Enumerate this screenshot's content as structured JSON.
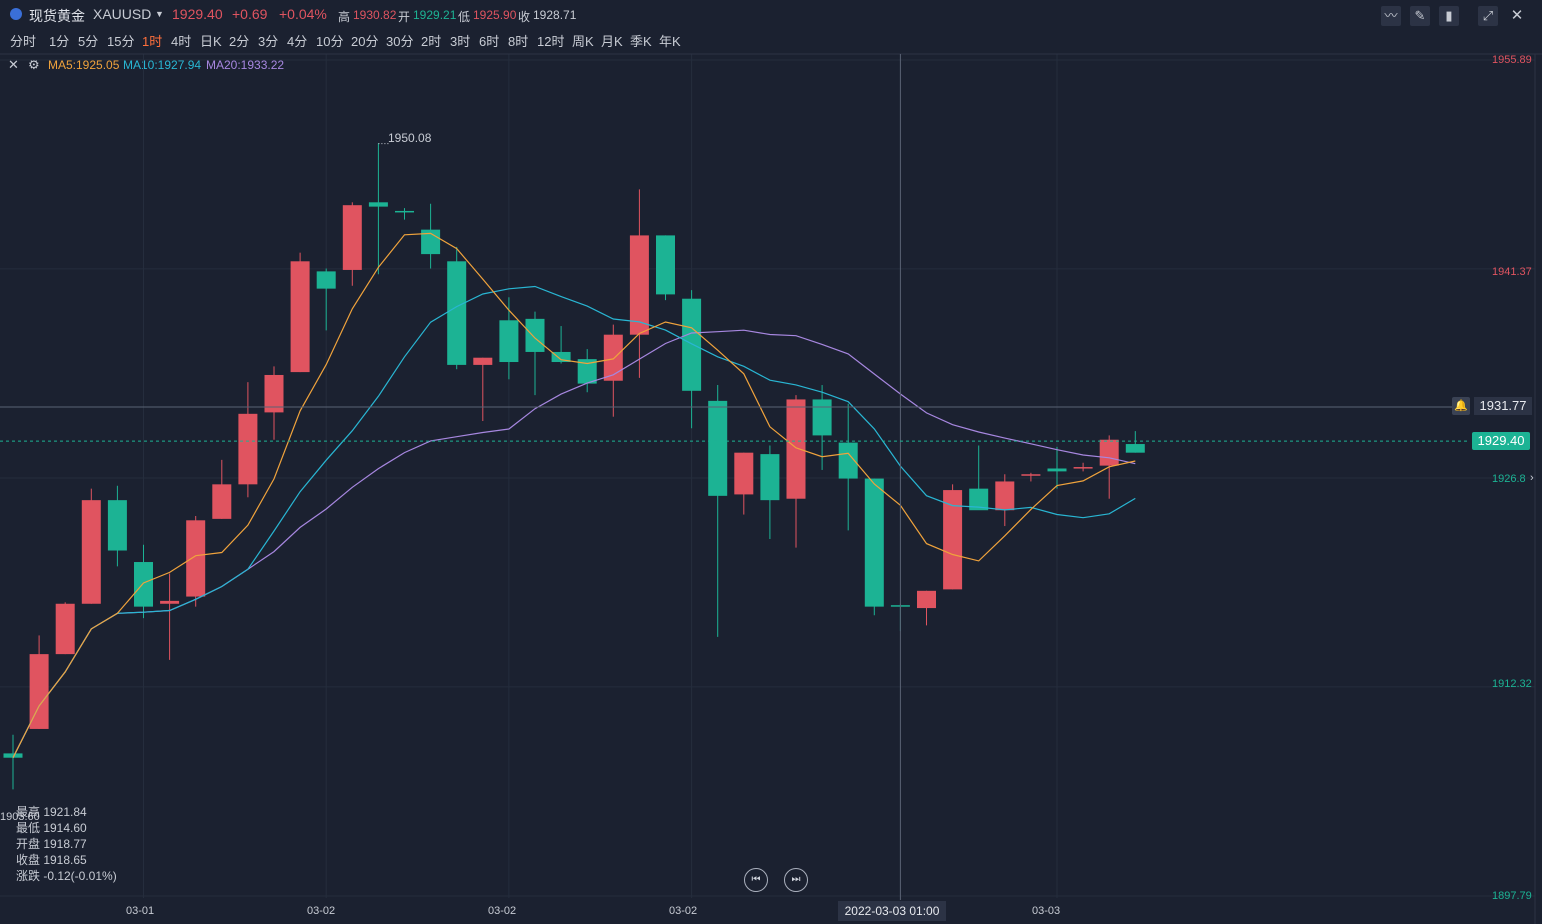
{
  "header": {
    "symbol_name": "现货黄金",
    "symbol_code": "XAUUSD",
    "last_price": "1929.40",
    "change": "+0.69",
    "change_pct": "+0.04%",
    "high_label": "高",
    "high": "1930.82",
    "open_label": "开",
    "open": "1929.21",
    "low_label": "低",
    "low": "1925.90",
    "close_label": "收",
    "close": "1928.71"
  },
  "periods": [
    "分时",
    "1分",
    "5分",
    "15分",
    "1时",
    "4时",
    "日K",
    "2分",
    "3分",
    "4分",
    "10分",
    "20分",
    "30分",
    "2时",
    "3时",
    "6时",
    "8时",
    "12时",
    "周K",
    "月K",
    "季K",
    "年K"
  ],
  "active_period": "1时",
  "ma_legend": {
    "ma5": "MA5:1925.05",
    "ma10": "MA10:1927.94",
    "ma20": "MA20:1933.22"
  },
  "price_scale": {
    "top": "1955.89",
    "p2": "1941.37",
    "p3": "1926.8",
    "p4": "1912.32",
    "bottom": "1897.79",
    "crosshair_price": "1931.77",
    "last_price": "1929.40",
    "left_low": "1903.60"
  },
  "time_axis": {
    "labels": [
      "03-01",
      "03-02",
      "03-02",
      "03-02",
      "03-03"
    ],
    "crosshair_time": "2022-03-03 01:00"
  },
  "peak_annotation": "1950.08",
  "ohlc_panel": {
    "high": "最高 1921.84",
    "low": "最低 1914.60",
    "open": "开盘 1918.77",
    "close": "收盘 1918.65",
    "change": "涨跌 -0.12(-0.01%)"
  },
  "colors": {
    "up": "#e05460",
    "down": "#1cb394",
    "ma5": "#f0a33c",
    "ma10": "#29b6d3",
    "ma20": "#a787e0",
    "background": "#1b2130"
  },
  "chart_data": {
    "type": "candlestick",
    "price_range": [
      1897.79,
      1955.89
    ],
    "candles": [
      {
        "o": 1907.7,
        "h": 1909.0,
        "l": 1905.2,
        "c": 1907.4
      },
      {
        "o": 1909.4,
        "h": 1915.9,
        "l": 1909.4,
        "c": 1914.6
      },
      {
        "o": 1914.6,
        "h": 1918.2,
        "l": 1914.6,
        "c": 1918.1
      },
      {
        "o": 1918.1,
        "h": 1926.1,
        "l": 1918.1,
        "c": 1925.3
      },
      {
        "o": 1925.3,
        "h": 1926.3,
        "l": 1920.7,
        "c": 1921.8
      },
      {
        "o": 1921.0,
        "h": 1922.2,
        "l": 1917.1,
        "c": 1917.9
      },
      {
        "o": 1918.1,
        "h": 1920.2,
        "l": 1914.2,
        "c": 1918.3
      },
      {
        "o": 1918.6,
        "h": 1924.2,
        "l": 1917.9,
        "c": 1923.9
      },
      {
        "o": 1924.0,
        "h": 1928.1,
        "l": 1924.0,
        "c": 1926.4
      },
      {
        "o": 1926.4,
        "h": 1933.5,
        "l": 1925.5,
        "c": 1931.3
      },
      {
        "o": 1931.4,
        "h": 1934.6,
        "l": 1929.5,
        "c": 1934.0
      },
      {
        "o": 1934.2,
        "h": 1942.5,
        "l": 1934.2,
        "c": 1941.9
      },
      {
        "o": 1941.2,
        "h": 1941.4,
        "l": 1937.1,
        "c": 1940.0
      },
      {
        "o": 1941.3,
        "h": 1946.0,
        "l": 1940.2,
        "c": 1945.8
      },
      {
        "o": 1946.0,
        "h": 1950.1,
        "l": 1941.0,
        "c": 1945.7
      },
      {
        "o": 1945.4,
        "h": 1945.6,
        "l": 1944.8,
        "c": 1945.3
      },
      {
        "o": 1944.1,
        "h": 1945.9,
        "l": 1941.4,
        "c": 1942.4
      },
      {
        "o": 1941.9,
        "h": 1942.9,
        "l": 1934.4,
        "c": 1934.7
      },
      {
        "o": 1934.7,
        "h": 1935.2,
        "l": 1930.8,
        "c": 1935.2
      },
      {
        "o": 1937.8,
        "h": 1939.4,
        "l": 1933.7,
        "c": 1934.9
      },
      {
        "o": 1937.9,
        "h": 1938.4,
        "l": 1932.6,
        "c": 1935.6
      },
      {
        "o": 1935.6,
        "h": 1937.4,
        "l": 1934.8,
        "c": 1934.9
      },
      {
        "o": 1935.1,
        "h": 1935.8,
        "l": 1932.8,
        "c": 1933.4
      },
      {
        "o": 1933.6,
        "h": 1937.5,
        "l": 1931.1,
        "c": 1936.8
      },
      {
        "o": 1936.8,
        "h": 1946.9,
        "l": 1933.8,
        "c": 1943.7
      },
      {
        "o": 1943.7,
        "h": 1943.7,
        "l": 1939.2,
        "c": 1939.6
      },
      {
        "o": 1939.3,
        "h": 1939.9,
        "l": 1930.3,
        "c": 1932.9
      },
      {
        "o": 1932.2,
        "h": 1933.3,
        "l": 1915.8,
        "c": 1925.6
      },
      {
        "o": 1925.7,
        "h": 1928.6,
        "l": 1924.3,
        "c": 1928.6
      },
      {
        "o": 1928.5,
        "h": 1929.1,
        "l": 1922.6,
        "c": 1925.3
      },
      {
        "o": 1925.4,
        "h": 1932.6,
        "l": 1922.0,
        "c": 1932.3
      },
      {
        "o": 1932.3,
        "h": 1933.3,
        "l": 1927.4,
        "c": 1929.8
      },
      {
        "o": 1929.3,
        "h": 1932.0,
        "l": 1923.2,
        "c": 1926.8
      },
      {
        "o": 1926.8,
        "h": 1926.8,
        "l": 1917.3,
        "c": 1917.9
      },
      {
        "o": 1918.0,
        "h": 1918.1,
        "l": 1916.2,
        "c": 1917.9
      },
      {
        "o": 1917.8,
        "h": 1919.0,
        "l": 1916.6,
        "c": 1919.0
      },
      {
        "o": 1919.1,
        "h": 1926.4,
        "l": 1919.1,
        "c": 1926.0
      },
      {
        "o": 1926.1,
        "h": 1929.1,
        "l": 1924.7,
        "c": 1924.6
      },
      {
        "o": 1924.6,
        "h": 1927.1,
        "l": 1923.5,
        "c": 1926.6
      },
      {
        "o": 1927.0,
        "h": 1927.2,
        "l": 1926.6,
        "c": 1927.1
      },
      {
        "o": 1927.5,
        "h": 1929.0,
        "l": 1926.1,
        "c": 1927.3
      },
      {
        "o": 1927.6,
        "h": 1927.9,
        "l": 1927.3,
        "c": 1927.6
      },
      {
        "o": 1927.7,
        "h": 1929.8,
        "l": 1925.4,
        "c": 1929.5
      },
      {
        "o": 1929.2,
        "h": 1930.1,
        "l": 1928.6,
        "c": 1928.6
      }
    ]
  }
}
